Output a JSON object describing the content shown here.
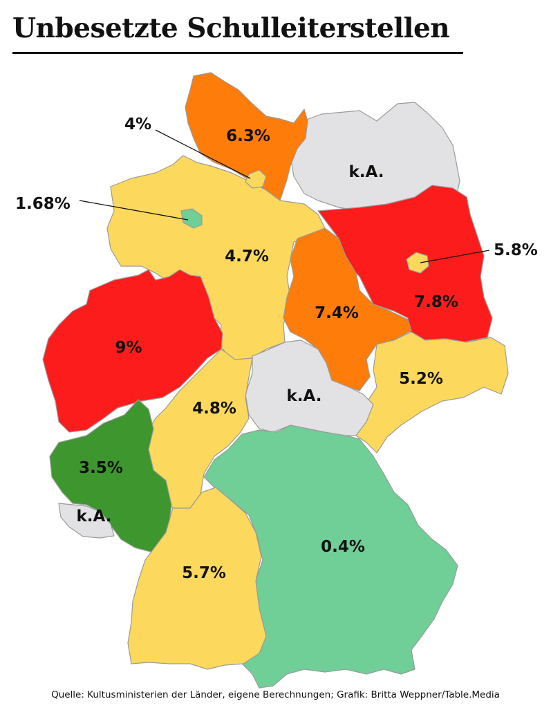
{
  "title": "Unbesetzte Schulleiterstellen",
  "source": "Quelle: Kultusministerien der Länder, eigene Berechnungen; Grafik: Britta Weppner/Table.Media",
  "colors": {
    "no_data": "#e2e2e4",
    "very_low": "#6fcf97",
    "low": "#3d962e",
    "mid": "#fcd95c",
    "high": "#fd7c0a",
    "very_high": "#fc1c1c"
  },
  "states": {
    "schleswig_holstein": {
      "value": "6.3%",
      "color": "#fd7c0a"
    },
    "hamburg": {
      "value": "4%",
      "color": "#fcd95c"
    },
    "mecklenburg_vorpommern": {
      "value": "k.A.",
      "color": "#e2e2e4"
    },
    "bremen": {
      "value": "1.68%",
      "color": "#6fcf97"
    },
    "niedersachsen": {
      "value": "4.7%",
      "color": "#fcd95c"
    },
    "berlin": {
      "value": "5.8%",
      "color": "#fcd95c"
    },
    "brandenburg": {
      "value": "7.8%",
      "color": "#fc1c1c"
    },
    "sachsen_anhalt": {
      "value": "7.4%",
      "color": "#fd7c0a"
    },
    "nordrhein_westfalen": {
      "value": "9%",
      "color": "#fc1c1c"
    },
    "sachsen": {
      "value": "5.2%",
      "color": "#fcd95c"
    },
    "thueringen": {
      "value": "k.A.",
      "color": "#e2e2e4"
    },
    "hessen": {
      "value": "4.8%",
      "color": "#fcd95c"
    },
    "rheinland_pfalz": {
      "value": "3.5%",
      "color": "#3d962e"
    },
    "saarland": {
      "value": "k.A.",
      "color": "#e2e2e4"
    },
    "bayern": {
      "value": "0.4%",
      "color": "#6fcf97"
    },
    "baden_wuerttemberg": {
      "value": "5.7%",
      "color": "#fcd95c"
    }
  }
}
